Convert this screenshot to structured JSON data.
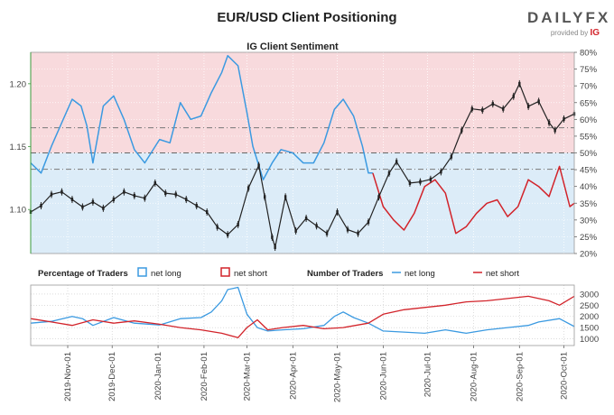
{
  "title": "EUR/USD Client Positioning",
  "brand": {
    "name_a": "DAILY",
    "name_b": "FX",
    "provided_by": "provided by",
    "provider": "IG"
  },
  "colors": {
    "long": "#3b9ae1",
    "short": "#d2232a",
    "price": "#222222",
    "long_bg": "#dcecf8",
    "short_bg": "#f8dadd"
  },
  "chart_data": [
    {
      "type": "line",
      "title": "IG Client Sentiment",
      "x_start": "2019-10-07",
      "x_end": "2020-10-08",
      "x_ticks": [
        "2019-Nov-01",
        "2019-Dec-01",
        "2020-Jan-01",
        "2020-Feb-01",
        "2020-Mar-01",
        "2020-Apr-01",
        "2020-May-01",
        "2020-Jun-01",
        "2020-Jul-01",
        "2020-Aug-01",
        "2020-Sep-01",
        "2020-Oct-01"
      ],
      "y_left": {
        "ticks": [
          "1.10",
          "1.15",
          "1.20"
        ],
        "range": [
          1.065,
          1.225
        ]
      },
      "y_right": {
        "ticks": [
          "20%",
          "25%",
          "30%",
          "35%",
          "40%",
          "45%",
          "50%",
          "55%",
          "60%",
          "65%",
          "70%",
          "75%",
          "80%"
        ],
        "range": [
          20,
          80
        ]
      },
      "reference_lines": {
        "price": [
          1.165,
          1.132
        ],
        "percent": [
          50
        ]
      },
      "series": [
        {
          "name": "net long",
          "axis": "right",
          "points": [
            [
              "2019-10-07",
              47
            ],
            [
              "2019-10-14",
              44
            ],
            [
              "2019-10-21",
              52
            ],
            [
              "2019-10-28",
              59
            ],
            [
              "2019-11-04",
              66
            ],
            [
              "2019-11-10",
              64
            ],
            [
              "2019-11-14",
              58
            ],
            [
              "2019-11-18",
              47
            ],
            [
              "2019-11-25",
              64
            ],
            [
              "2019-12-02",
              67
            ],
            [
              "2019-12-09",
              60
            ],
            [
              "2019-12-16",
              51
            ],
            [
              "2019-12-23",
              47
            ],
            [
              "2020-01-02",
              54
            ],
            [
              "2020-01-09",
              53
            ],
            [
              "2020-01-16",
              65
            ],
            [
              "2020-01-23",
              60
            ],
            [
              "2020-01-30",
              61
            ],
            [
              "2020-02-06",
              68
            ],
            [
              "2020-02-13",
              74
            ],
            [
              "2020-02-17",
              79
            ],
            [
              "2020-02-24",
              76
            ],
            [
              "2020-03-01",
              62
            ],
            [
              "2020-03-05",
              52
            ],
            [
              "2020-03-12",
              42
            ],
            [
              "2020-03-18",
              47
            ],
            [
              "2020-03-24",
              51
            ],
            [
              "2020-04-01",
              50
            ],
            [
              "2020-04-08",
              47
            ],
            [
              "2020-04-15",
              47
            ],
            [
              "2020-04-22",
              53
            ],
            [
              "2020-04-29",
              63
            ],
            [
              "2020-05-05",
              66
            ],
            [
              "2020-05-12",
              61
            ],
            [
              "2020-05-18",
              52
            ],
            [
              "2020-05-22",
              44
            ],
            [
              "2020-05-25",
              44
            ]
          ]
        },
        {
          "name": "net short",
          "axis": "right",
          "points": [
            [
              "2020-05-25",
              44
            ],
            [
              "2020-06-01",
              34
            ],
            [
              "2020-06-08",
              30
            ],
            [
              "2020-06-15",
              27
            ],
            [
              "2020-06-22",
              32
            ],
            [
              "2020-06-29",
              40
            ],
            [
              "2020-07-06",
              42
            ],
            [
              "2020-07-13",
              38
            ],
            [
              "2020-07-20",
              26
            ],
            [
              "2020-07-27",
              28
            ],
            [
              "2020-08-03",
              32
            ],
            [
              "2020-08-10",
              35
            ],
            [
              "2020-08-17",
              36
            ],
            [
              "2020-08-24",
              31
            ],
            [
              "2020-08-31",
              34
            ],
            [
              "2020-09-07",
              42
            ],
            [
              "2020-09-14",
              40
            ],
            [
              "2020-09-21",
              37
            ],
            [
              "2020-09-28",
              46
            ],
            [
              "2020-10-05",
              34
            ],
            [
              "2020-10-08",
              35
            ]
          ]
        },
        {
          "name": "price",
          "axis": "left",
          "points": [
            [
              "2019-10-07",
              1.098
            ],
            [
              "2019-10-14",
              1.103
            ],
            [
              "2019-10-21",
              1.112
            ],
            [
              "2019-10-28",
              1.114
            ],
            [
              "2019-11-04",
              1.108
            ],
            [
              "2019-11-11",
              1.102
            ],
            [
              "2019-11-18",
              1.106
            ],
            [
              "2019-11-25",
              1.101
            ],
            [
              "2019-12-02",
              1.108
            ],
            [
              "2019-12-09",
              1.114
            ],
            [
              "2019-12-16",
              1.111
            ],
            [
              "2019-12-23",
              1.109
            ],
            [
              "2019-12-30",
              1.121
            ],
            [
              "2020-01-06",
              1.113
            ],
            [
              "2020-01-13",
              1.112
            ],
            [
              "2020-01-20",
              1.108
            ],
            [
              "2020-01-27",
              1.103
            ],
            [
              "2020-02-03",
              1.098
            ],
            [
              "2020-02-10",
              1.086
            ],
            [
              "2020-02-17",
              1.08
            ],
            [
              "2020-02-24",
              1.088
            ],
            [
              "2020-03-02",
              1.117
            ],
            [
              "2020-03-09",
              1.135
            ],
            [
              "2020-03-13",
              1.11
            ],
            [
              "2020-03-18",
              1.078
            ],
            [
              "2020-03-20",
              1.07
            ],
            [
              "2020-03-27",
              1.11
            ],
            [
              "2020-04-03",
              1.083
            ],
            [
              "2020-04-10",
              1.093
            ],
            [
              "2020-04-17",
              1.087
            ],
            [
              "2020-04-24",
              1.081
            ],
            [
              "2020-05-01",
              1.098
            ],
            [
              "2020-05-08",
              1.084
            ],
            [
              "2020-05-15",
              1.081
            ],
            [
              "2020-05-22",
              1.09
            ],
            [
              "2020-05-29",
              1.11
            ],
            [
              "2020-06-05",
              1.129
            ],
            [
              "2020-06-10",
              1.138
            ],
            [
              "2020-06-19",
              1.121
            ],
            [
              "2020-06-26",
              1.122
            ],
            [
              "2020-07-03",
              1.124
            ],
            [
              "2020-07-10",
              1.13
            ],
            [
              "2020-07-17",
              1.142
            ],
            [
              "2020-07-24",
              1.163
            ],
            [
              "2020-07-31",
              1.18
            ],
            [
              "2020-08-07",
              1.179
            ],
            [
              "2020-08-14",
              1.184
            ],
            [
              "2020-08-21",
              1.18
            ],
            [
              "2020-08-28",
              1.19
            ],
            [
              "2020-09-01",
              1.2
            ],
            [
              "2020-09-07",
              1.182
            ],
            [
              "2020-09-14",
              1.186
            ],
            [
              "2020-09-21",
              1.169
            ],
            [
              "2020-09-25",
              1.163
            ],
            [
              "2020-10-01",
              1.172
            ],
            [
              "2020-10-08",
              1.176
            ]
          ]
        }
      ]
    },
    {
      "type": "line",
      "title": "Percentage of Traders",
      "legend": [
        "net long",
        "net short"
      ],
      "second_title": "Number of Traders",
      "second_legend": [
        "net long",
        "net short"
      ],
      "y_right": {
        "ticks": [
          "1000",
          "1500",
          "2000",
          "2500",
          "3000"
        ],
        "range": [
          700,
          3400
        ]
      },
      "series": [
        {
          "name": "net long",
          "points": [
            [
              "2019-10-07",
              1700
            ],
            [
              "2019-10-21",
              1780
            ],
            [
              "2019-11-04",
              2000
            ],
            [
              "2019-11-11",
              1900
            ],
            [
              "2019-11-18",
              1600
            ],
            [
              "2019-12-02",
              1950
            ],
            [
              "2019-12-16",
              1700
            ],
            [
              "2020-01-02",
              1620
            ],
            [
              "2020-01-16",
              1900
            ],
            [
              "2020-01-30",
              1950
            ],
            [
              "2020-02-06",
              2200
            ],
            [
              "2020-02-13",
              2700
            ],
            [
              "2020-02-17",
              3200
            ],
            [
              "2020-02-24",
              3300
            ],
            [
              "2020-03-01",
              2100
            ],
            [
              "2020-03-08",
              1500
            ],
            [
              "2020-03-15",
              1350
            ],
            [
              "2020-03-25",
              1400
            ],
            [
              "2020-04-08",
              1450
            ],
            [
              "2020-04-22",
              1600
            ],
            [
              "2020-04-29",
              2000
            ],
            [
              "2020-05-05",
              2200
            ],
            [
              "2020-05-12",
              1950
            ],
            [
              "2020-05-22",
              1700
            ],
            [
              "2020-06-01",
              1350
            ],
            [
              "2020-06-15",
              1300
            ],
            [
              "2020-06-29",
              1250
            ],
            [
              "2020-07-13",
              1400
            ],
            [
              "2020-07-27",
              1250
            ],
            [
              "2020-08-10",
              1400
            ],
            [
              "2020-08-24",
              1500
            ],
            [
              "2020-09-07",
              1600
            ],
            [
              "2020-09-14",
              1750
            ],
            [
              "2020-09-28",
              1900
            ],
            [
              "2020-10-08",
              1550
            ]
          ]
        },
        {
          "name": "net short",
          "points": [
            [
              "2019-10-07",
              1900
            ],
            [
              "2019-10-21",
              1750
            ],
            [
              "2019-11-04",
              1600
            ],
            [
              "2019-11-18",
              1850
            ],
            [
              "2019-12-02",
              1700
            ],
            [
              "2019-12-16",
              1800
            ],
            [
              "2020-01-02",
              1650
            ],
            [
              "2020-01-16",
              1500
            ],
            [
              "2020-01-30",
              1400
            ],
            [
              "2020-02-13",
              1250
            ],
            [
              "2020-02-24",
              1050
            ],
            [
              "2020-03-01",
              1500
            ],
            [
              "2020-03-08",
              1850
            ],
            [
              "2020-03-15",
              1400
            ],
            [
              "2020-03-25",
              1500
            ],
            [
              "2020-04-08",
              1600
            ],
            [
              "2020-04-22",
              1450
            ],
            [
              "2020-05-05",
              1500
            ],
            [
              "2020-05-22",
              1700
            ],
            [
              "2020-06-01",
              2100
            ],
            [
              "2020-06-15",
              2300
            ],
            [
              "2020-06-29",
              2400
            ],
            [
              "2020-07-13",
              2500
            ],
            [
              "2020-07-27",
              2650
            ],
            [
              "2020-08-10",
              2700
            ],
            [
              "2020-08-24",
              2800
            ],
            [
              "2020-09-07",
              2900
            ],
            [
              "2020-09-21",
              2700
            ],
            [
              "2020-09-28",
              2500
            ],
            [
              "2020-10-08",
              2900
            ]
          ]
        }
      ]
    }
  ]
}
